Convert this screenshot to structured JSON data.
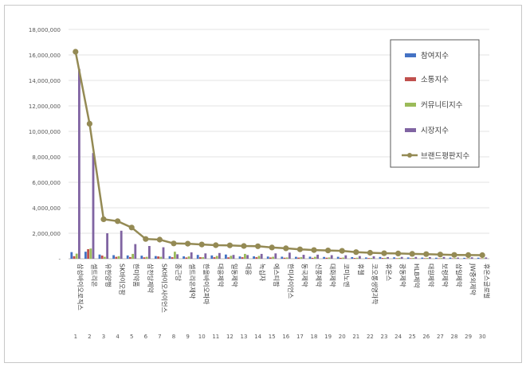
{
  "chart_data": {
    "type": "bar",
    "title": "",
    "xlabel": "",
    "ylabel": "",
    "ylim": [
      0,
      18000000
    ],
    "yticks": [
      "-",
      "2,000,000",
      "4,000,000",
      "6,000,000",
      "8,000,000",
      "10,000,000",
      "12,000,000",
      "14,000,000",
      "16,000,000",
      "18,000,000"
    ],
    "categories": [
      "삼성바이오로직스",
      "셀트리온",
      "유한양행",
      "SK바이오팜",
      "한미약품",
      "삼천당제약",
      "SK바이오사이언스",
      "종근당",
      "셀트리온제약",
      "한올바이오파마",
      "대웅제약",
      "일동제약",
      "대웅",
      "녹십자",
      "에스티팜",
      "한미사이언스",
      "동국제약",
      "신풍제약",
      "대화제약",
      "코미노엔",
      "휴젤",
      "코오롱생명과학",
      "휴온스",
      "광동제약",
      "HLB제약",
      "대원제약",
      "보령제약",
      "삼일제약",
      "JW중외제약",
      "휴온스글로벌"
    ],
    "ranks": [
      "1",
      "2",
      "3",
      "4",
      "5",
      "6",
      "7",
      "8",
      "9",
      "10",
      "11",
      "12",
      "13",
      "14",
      "15",
      "16",
      "17",
      "18",
      "19",
      "20",
      "21",
      "22",
      "23",
      "24",
      "25",
      "26",
      "27",
      "28",
      "29",
      "30"
    ],
    "series": [
      {
        "name": "참여지수",
        "color": "#4472c4",
        "values": [
          520000,
          550000,
          330000,
          280000,
          260000,
          240000,
          210000,
          200000,
          190000,
          300000,
          260000,
          330000,
          180000,
          190000,
          170000,
          160000,
          150000,
          160000,
          140000,
          150000,
          130000,
          100000,
          140000,
          110000,
          100000,
          90000,
          80000,
          90000,
          70000,
          80000
        ]
      },
      {
        "name": "소통지수",
        "color": "#c0504d",
        "values": [
          200000,
          750000,
          250000,
          150000,
          130000,
          110000,
          180000,
          120000,
          100000,
          120000,
          120000,
          110000,
          120000,
          120000,
          100000,
          80000,
          90000,
          70000,
          80000,
          70000,
          60000,
          50000,
          60000,
          40000,
          40000,
          40000,
          30000,
          30000,
          30000,
          30000
        ]
      },
      {
        "name": "커뮤니티지수",
        "color": "#9bbb59",
        "values": [
          400000,
          800000,
          150000,
          200000,
          380000,
          150000,
          150000,
          550000,
          180000,
          120000,
          220000,
          230000,
          380000,
          220000,
          150000,
          100000,
          120000,
          150000,
          100000,
          90000,
          80000,
          60000,
          70000,
          70000,
          60000,
          60000,
          50000,
          50000,
          40000,
          40000
        ]
      },
      {
        "name": "시장지수",
        "color": "#8064a2",
        "values": [
          14900000,
          8300000,
          2000000,
          2200000,
          1150000,
          1000000,
          900000,
          350000,
          500000,
          420000,
          450000,
          300000,
          290000,
          380000,
          420000,
          480000,
          310000,
          320000,
          280000,
          270000,
          210000,
          190000,
          130000,
          140000,
          140000,
          130000,
          140000,
          90000,
          110000,
          100000
        ]
      }
    ],
    "line": {
      "name": "브랜드평판지수",
      "color": "#948a54",
      "values": [
        16250000,
        10600000,
        3100000,
        2950000,
        2450000,
        1550000,
        1500000,
        1200000,
        1180000,
        1120000,
        1060000,
        1050000,
        1000000,
        980000,
        880000,
        820000,
        740000,
        680000,
        650000,
        620000,
        520000,
        470000,
        430000,
        410000,
        380000,
        360000,
        330000,
        300000,
        290000,
        280000
      ]
    },
    "legend_position": "top-right"
  }
}
